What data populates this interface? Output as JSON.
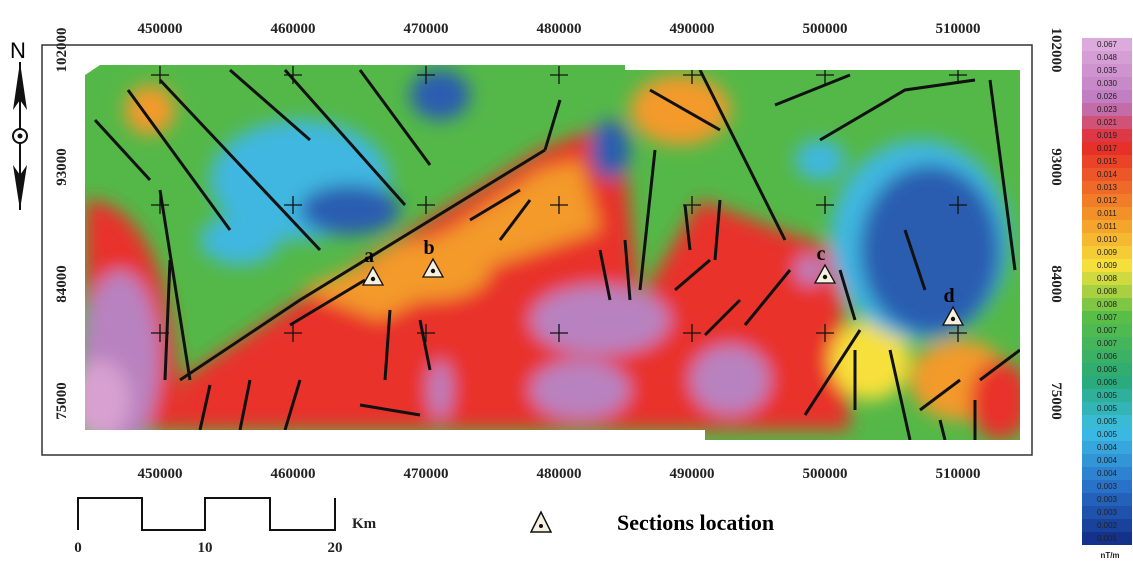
{
  "compass": {
    "label": "N"
  },
  "axes": {
    "x_labels": [
      "450000",
      "460000",
      "470000",
      "480000",
      "490000",
      "500000",
      "510000"
    ],
    "y_labels": [
      "102000",
      "93000",
      "84000",
      "75000"
    ]
  },
  "colorbar": {
    "labels": [
      "0.067",
      "0.048",
      "0.035",
      "0.030",
      "0.026",
      "0.023",
      "0.021",
      "0.019",
      "0.017",
      "0.015",
      "0.014",
      "0.013",
      "0.012",
      "0.011",
      "0.011",
      "0.010",
      "0.009",
      "0.009",
      "0.008",
      "0.008",
      "0.008",
      "0.007",
      "0.007",
      "0.007",
      "0.006",
      "0.006",
      "0.006",
      "0.005",
      "0.005",
      "0.005",
      "0.005",
      "0.004",
      "0.004",
      "0.004",
      "0.003",
      "0.003",
      "0.003",
      "0.002",
      "0.001"
    ],
    "unit": "nT/m"
  },
  "sections": [
    {
      "label": "a"
    },
    {
      "label": "b"
    },
    {
      "label": "c"
    },
    {
      "label": "d"
    }
  ],
  "scale_bar": {
    "labels": [
      "0",
      "10",
      "20"
    ],
    "unit": "Km"
  },
  "legend": {
    "label": "Sections location"
  }
}
